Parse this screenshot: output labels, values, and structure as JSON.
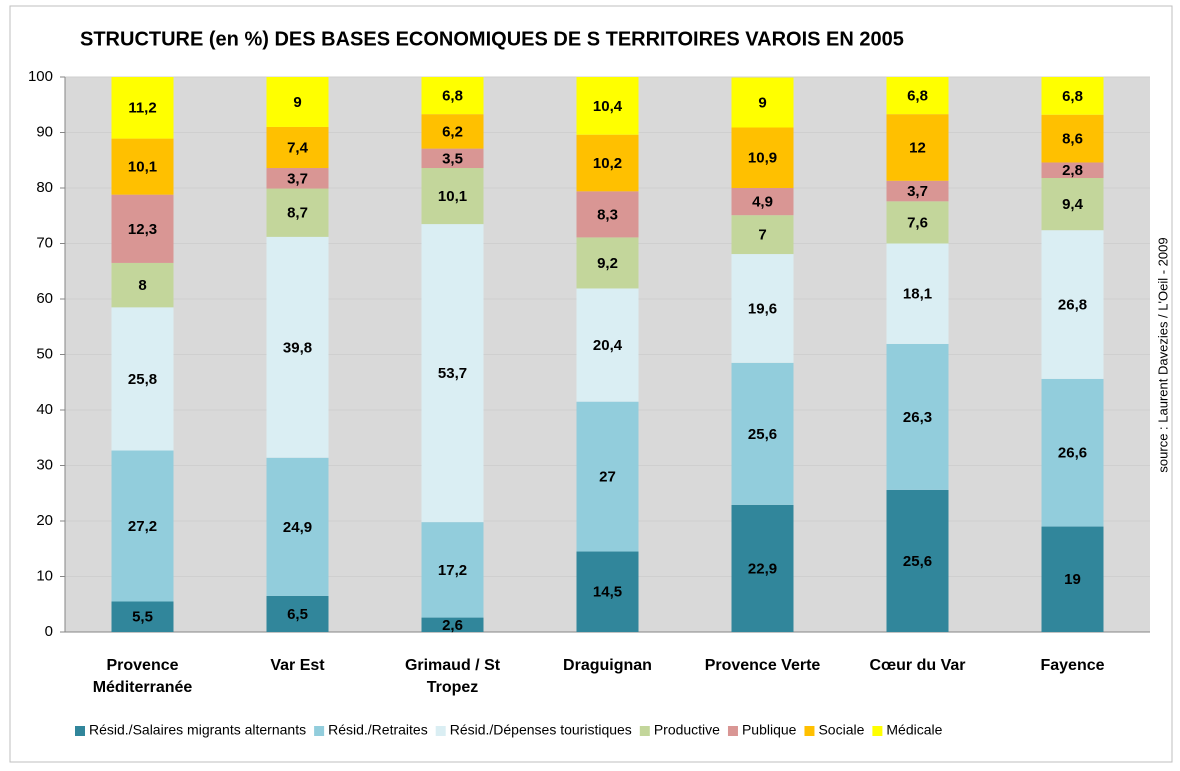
{
  "chart_data": {
    "type": "stacked_bar",
    "title": "STRUCTURE (en %) DES BASES ECONOMIQUES DE S TERRITOIRES VAROIS EN 2005",
    "source": "source : Laurent Davezies / L'Oeil - 2009",
    "categories": [
      "Provence Méditerranée",
      "Var Est",
      "Grimaud / St Tropez",
      "Draguignan",
      "Provence Verte",
      "Cœur du Var",
      "Fayence"
    ],
    "series": [
      {
        "name": "Résid./Salaires migrants alternants",
        "color": "#31869b",
        "values": [
          5.5,
          6.5,
          2.6,
          14.5,
          22.9,
          25.6,
          19
        ],
        "value_labels": [
          "5,5",
          "6,5",
          "2,6",
          "14,5",
          "22,9",
          "25,6",
          "19"
        ]
      },
      {
        "name": "Résid./Retraites",
        "color": "#92cddc",
        "values": [
          27.2,
          24.9,
          17.2,
          27,
          25.6,
          26.3,
          26.6
        ],
        "value_labels": [
          "27,2",
          "24,9",
          "17,2",
          "27",
          "25,6",
          "26,3",
          "26,6"
        ]
      },
      {
        "name": "Résid./Dépenses touristiques",
        "color": "#daeef3",
        "values": [
          25.8,
          39.8,
          53.7,
          20.4,
          19.6,
          18.1,
          26.8
        ],
        "value_labels": [
          "25,8",
          "39,8",
          "53,7",
          "20,4",
          "19,6",
          "18,1",
          "26,8"
        ]
      },
      {
        "name": "Productive",
        "color": "#c3d69b",
        "values": [
          8,
          8.7,
          10.1,
          9.2,
          7,
          7.6,
          9.4
        ],
        "value_labels": [
          "8",
          "8,7",
          "10,1",
          "9,2",
          "7",
          "7,6",
          "9,4"
        ]
      },
      {
        "name": "Publique",
        "color": "#d99694",
        "values": [
          12.3,
          3.7,
          3.5,
          8.3,
          4.9,
          3.7,
          2.8
        ],
        "value_labels": [
          "12,3",
          "3,7",
          "3,5",
          "8,3",
          "4,9",
          "3,7",
          "2,8"
        ]
      },
      {
        "name": "Sociale",
        "color": "#ffc000",
        "values": [
          10.1,
          7.4,
          6.2,
          10.2,
          10.9,
          12,
          8.6
        ],
        "value_labels": [
          "10,1",
          "7,4",
          "6,2",
          "10,2",
          "10,9",
          "12",
          "8,6"
        ]
      },
      {
        "name": "Médicale",
        "color": "#ffff00",
        "values": [
          11.2,
          9,
          6.8,
          10.4,
          9,
          6.8,
          6.8
        ],
        "value_labels": [
          "11,2",
          "9",
          "6,8",
          "10,4",
          "9",
          "6,8",
          "6,8"
        ]
      }
    ],
    "ylim": [
      0,
      100
    ],
    "yticks": [
      0,
      10,
      20,
      30,
      40,
      50,
      60,
      70,
      80,
      90,
      100
    ],
    "grid": true,
    "legend": "bottom"
  }
}
